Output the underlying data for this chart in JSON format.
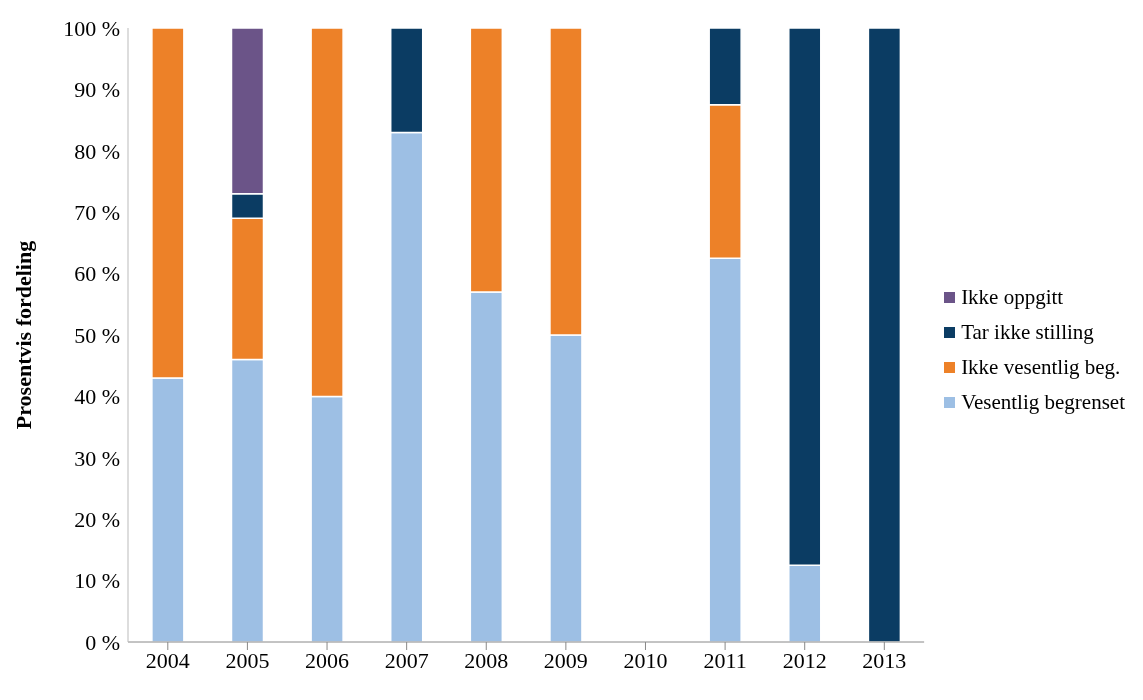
{
  "chart_data": {
    "type": "bar",
    "stacked": true,
    "ylabel": "Prosentvis fordeling",
    "categories": [
      "2004",
      "2005",
      "2006",
      "2007",
      "2008",
      "2009",
      "2010",
      "2011",
      "2012",
      "2013"
    ],
    "series": [
      {
        "name": "Vesentlig begrenset",
        "color": "#9dbfe4",
        "values": [
          43,
          46,
          40,
          83,
          57,
          50,
          null,
          62.5,
          12.5,
          0
        ]
      },
      {
        "name": "Ikke vesentlig beg.",
        "color": "#ed8128",
        "values": [
          57,
          23,
          60,
          0,
          43,
          50,
          null,
          25,
          0,
          0
        ]
      },
      {
        "name": "Tar ikke stilling",
        "color": "#0b3c63",
        "values": [
          0,
          4,
          0,
          17,
          0,
          0,
          null,
          12.5,
          87.5,
          100
        ]
      },
      {
        "name": "Ikke oppgitt",
        "color": "#6b5488",
        "values": [
          0,
          27,
          0,
          0,
          0,
          0,
          null,
          0,
          0,
          0
        ]
      }
    ],
    "ylim": [
      0,
      100
    ],
    "yticks": [
      {
        "value": 0,
        "label": "0 %"
      },
      {
        "value": 10,
        "label": "10 %"
      },
      {
        "value": 20,
        "label": "20 %"
      },
      {
        "value": 30,
        "label": "30 %"
      },
      {
        "value": 40,
        "label": "40 %"
      },
      {
        "value": 50,
        "label": "50 %"
      },
      {
        "value": 60,
        "label": "60 %"
      },
      {
        "value": 70,
        "label": "70 %"
      },
      {
        "value": 80,
        "label": "80 %"
      },
      {
        "value": 90,
        "label": "90 %"
      },
      {
        "value": 100,
        "label": "100 %"
      }
    ],
    "grid": false,
    "legend": "right"
  }
}
